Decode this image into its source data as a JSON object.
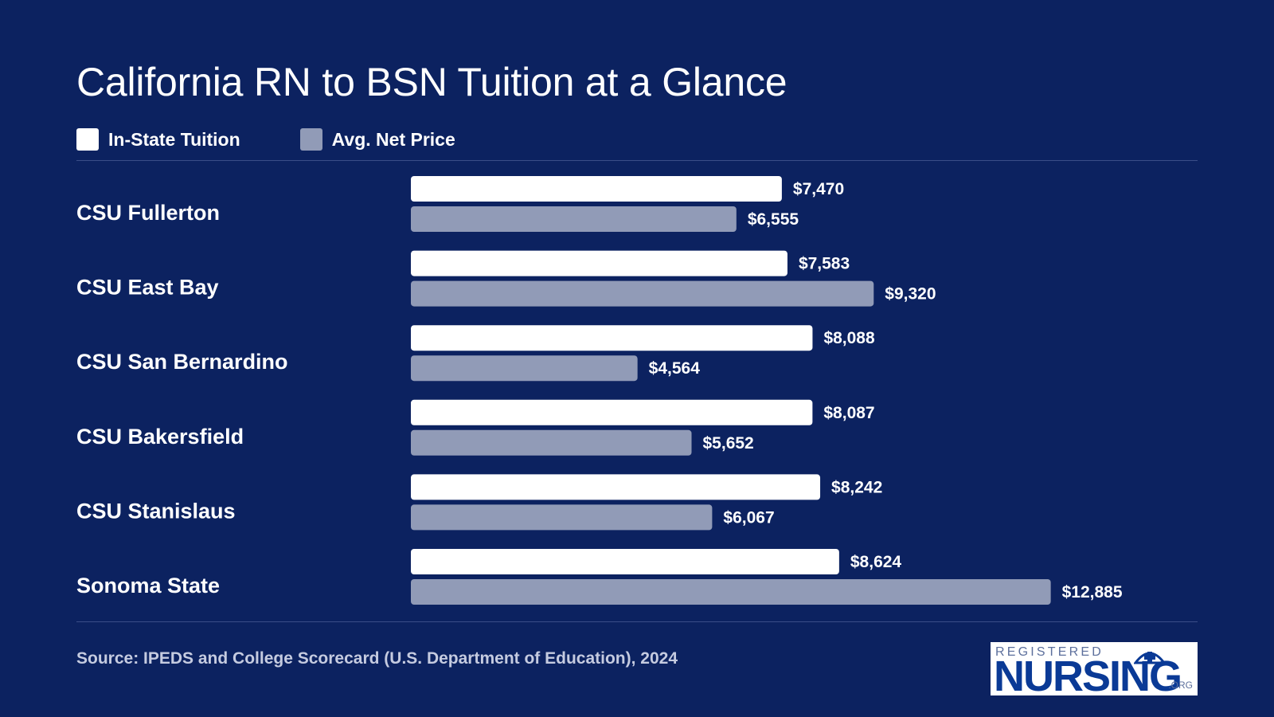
{
  "title": "California RN to BSN Tuition at a Glance",
  "legend": [
    {
      "label": "In-State Tuition",
      "color": "#ffffff"
    },
    {
      "label": "Avg. Net Price",
      "color": "#919bb7"
    }
  ],
  "source": "Source: IPEDS and College Scorecard (U.S. Department of Education), 2024",
  "logo": {
    "top": "REGISTERED",
    "main": "NURSING",
    "suffix": ".ORG",
    "icon": "nurse-cap-cross-icon"
  },
  "colors": {
    "background": "#0c2260",
    "in_state": "#ffffff",
    "net_price": "#919bb7",
    "rule": "#3a4e88"
  },
  "chart_data": {
    "type": "bar",
    "orientation": "horizontal",
    "categories": [
      "CSU Fullerton",
      "CSU East Bay",
      "CSU San Bernardino",
      "CSU Bakersfield",
      "CSU Stanislaus",
      "Sonoma State"
    ],
    "series": [
      {
        "name": "In-State Tuition",
        "values": [
          7470,
          7583,
          8088,
          8087,
          8242,
          8624
        ],
        "labels": [
          "$7,470",
          "$7,583",
          "$8,088",
          "$8,087",
          "$8,242",
          "$8,624"
        ]
      },
      {
        "name": "Avg. Net Price",
        "values": [
          6555,
          9320,
          4564,
          5652,
          6067,
          12885
        ],
        "labels": [
          "$6,555",
          "$9,320",
          "$4,564",
          "$5,652",
          "$6,067",
          "$12,885"
        ]
      }
    ],
    "xlim": [
      0,
      14000
    ],
    "grid": false,
    "legend_position": "top-left"
  }
}
